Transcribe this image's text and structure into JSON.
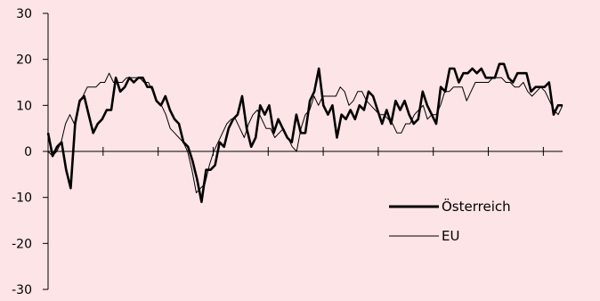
{
  "chart_data": {
    "type": "line",
    "title": "",
    "xlabel": "",
    "ylabel": "",
    "ylim": [
      -30,
      30
    ],
    "yticks": [
      30,
      20,
      10,
      0,
      -10,
      -20,
      -30
    ],
    "grid": false,
    "legend_position": "lower-right",
    "x_tick_count": 9,
    "series": [
      {
        "name": "Österreich",
        "color": "#000000",
        "style": "thick",
        "values": [
          4,
          -1,
          1,
          2,
          -4,
          -8,
          6,
          11,
          12,
          8,
          4,
          6,
          7,
          9,
          9,
          16,
          13,
          14,
          16,
          15,
          16,
          16,
          14,
          14,
          11,
          10,
          12,
          9,
          7,
          6,
          2,
          1,
          -2,
          -6,
          -11,
          -4,
          -4,
          -3,
          2,
          1,
          5,
          7,
          8,
          12,
          5,
          1,
          3,
          10,
          8,
          10,
          4,
          7,
          5,
          3,
          2,
          8,
          4,
          4,
          11,
          13,
          18,
          10,
          8,
          10,
          3,
          8,
          7,
          9,
          7,
          10,
          9,
          13,
          12,
          9,
          6,
          9,
          6,
          11,
          9,
          11,
          8,
          6,
          7,
          13,
          10,
          8,
          6,
          14,
          13,
          18,
          18,
          15,
          17,
          17,
          18,
          17,
          18,
          16,
          16,
          16,
          19,
          19,
          16,
          15,
          17,
          17,
          17,
          13,
          14,
          14,
          14,
          15,
          8,
          10,
          10
        ]
      },
      {
        "name": "EU",
        "color": "#000000",
        "style": "thin",
        "values": [
          0,
          -1,
          0,
          2,
          6,
          8,
          6,
          10,
          12,
          14,
          14,
          14,
          15,
          15,
          17,
          15,
          15,
          15,
          16,
          16,
          16,
          16,
          15,
          15,
          13,
          11,
          10,
          8,
          5,
          4,
          3,
          2,
          0,
          -4,
          -9,
          -8,
          -7,
          -3,
          0,
          2,
          4,
          6,
          7,
          7,
          5,
          3,
          6,
          8,
          9,
          7,
          5,
          5,
          3,
          4,
          5,
          3,
          1,
          0,
          5,
          8,
          9,
          12,
          10,
          12,
          12,
          12,
          12,
          14,
          13,
          10,
          11,
          13,
          13,
          11,
          10,
          9,
          8,
          8,
          7,
          6,
          4,
          4,
          6,
          6,
          8,
          9,
          10,
          7,
          8,
          8,
          10,
          13,
          13,
          14,
          14,
          14,
          11,
          13,
          15,
          15,
          15,
          15,
          16,
          16,
          16,
          15,
          15,
          14,
          14,
          15,
          13,
          12,
          13,
          14,
          13,
          11,
          9,
          8,
          10
        ]
      }
    ]
  }
}
